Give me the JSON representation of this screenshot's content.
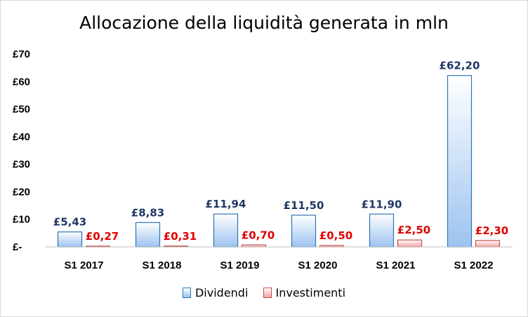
{
  "colors": {
    "dividendi_border": "#2e75b6",
    "dividendi_top": "#ffffff",
    "dividendi_bottom": "#9dc3f0",
    "investimenti_border": "#c0504d",
    "investimenti_top": "#ffffff",
    "investimenti_bottom": "#f4a0a0",
    "dividendi_label": "#1f3864",
    "investimenti_label": "#e00000"
  },
  "chart_data": {
    "type": "bar",
    "title": "Allocazione della liquidità generata in mln",
    "xlabel": "",
    "ylabel": "",
    "ylim": [
      0,
      70
    ],
    "yticks": [
      {
        "value": 0,
        "label": "£-"
      },
      {
        "value": 10,
        "label": "£10"
      },
      {
        "value": 20,
        "label": "£20"
      },
      {
        "value": 30,
        "label": "£30"
      },
      {
        "value": 40,
        "label": "£40"
      },
      {
        "value": 50,
        "label": "£50"
      },
      {
        "value": 60,
        "label": "£60"
      },
      {
        "value": 70,
        "label": "£70"
      }
    ],
    "categories": [
      "S1 2017",
      "S1 2018",
      "S1 2019",
      "S1 2020",
      "S1 2021",
      "S1 2022"
    ],
    "series": [
      {
        "name": "Dividendi",
        "values": [
          5.43,
          8.83,
          11.94,
          11.5,
          11.9,
          62.2
        ],
        "labels": [
          "£5,43",
          "£8,83",
          "£11,94",
          "£11,50",
          "£11,90",
          "£62,20"
        ]
      },
      {
        "name": "Investimenti",
        "values": [
          0.27,
          0.31,
          0.7,
          0.5,
          2.5,
          2.3
        ],
        "labels": [
          "£0,27",
          "£0,31",
          "£0,70",
          "£0,50",
          "£2,50",
          "£2,30"
        ]
      }
    ],
    "grid": false,
    "legend": "bottom"
  }
}
